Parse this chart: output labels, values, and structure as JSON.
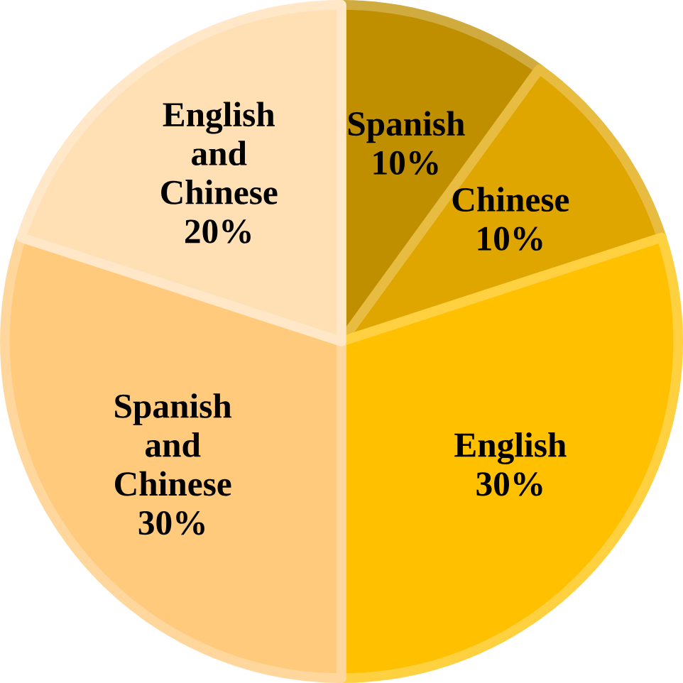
{
  "chart_data": {
    "type": "pie",
    "categories": [
      "Spanish",
      "Chinese",
      "English",
      "Spanish and Chinese",
      "English and Chinese"
    ],
    "values": [
      10,
      10,
      30,
      30,
      20
    ],
    "value_labels": [
      "10%",
      "10%",
      "30%",
      "30%",
      "20%"
    ],
    "colors": [
      "#bf8f00",
      "#dfa600",
      "#ffc000",
      "#ffca7c",
      "#ffdfb4"
    ]
  }
}
